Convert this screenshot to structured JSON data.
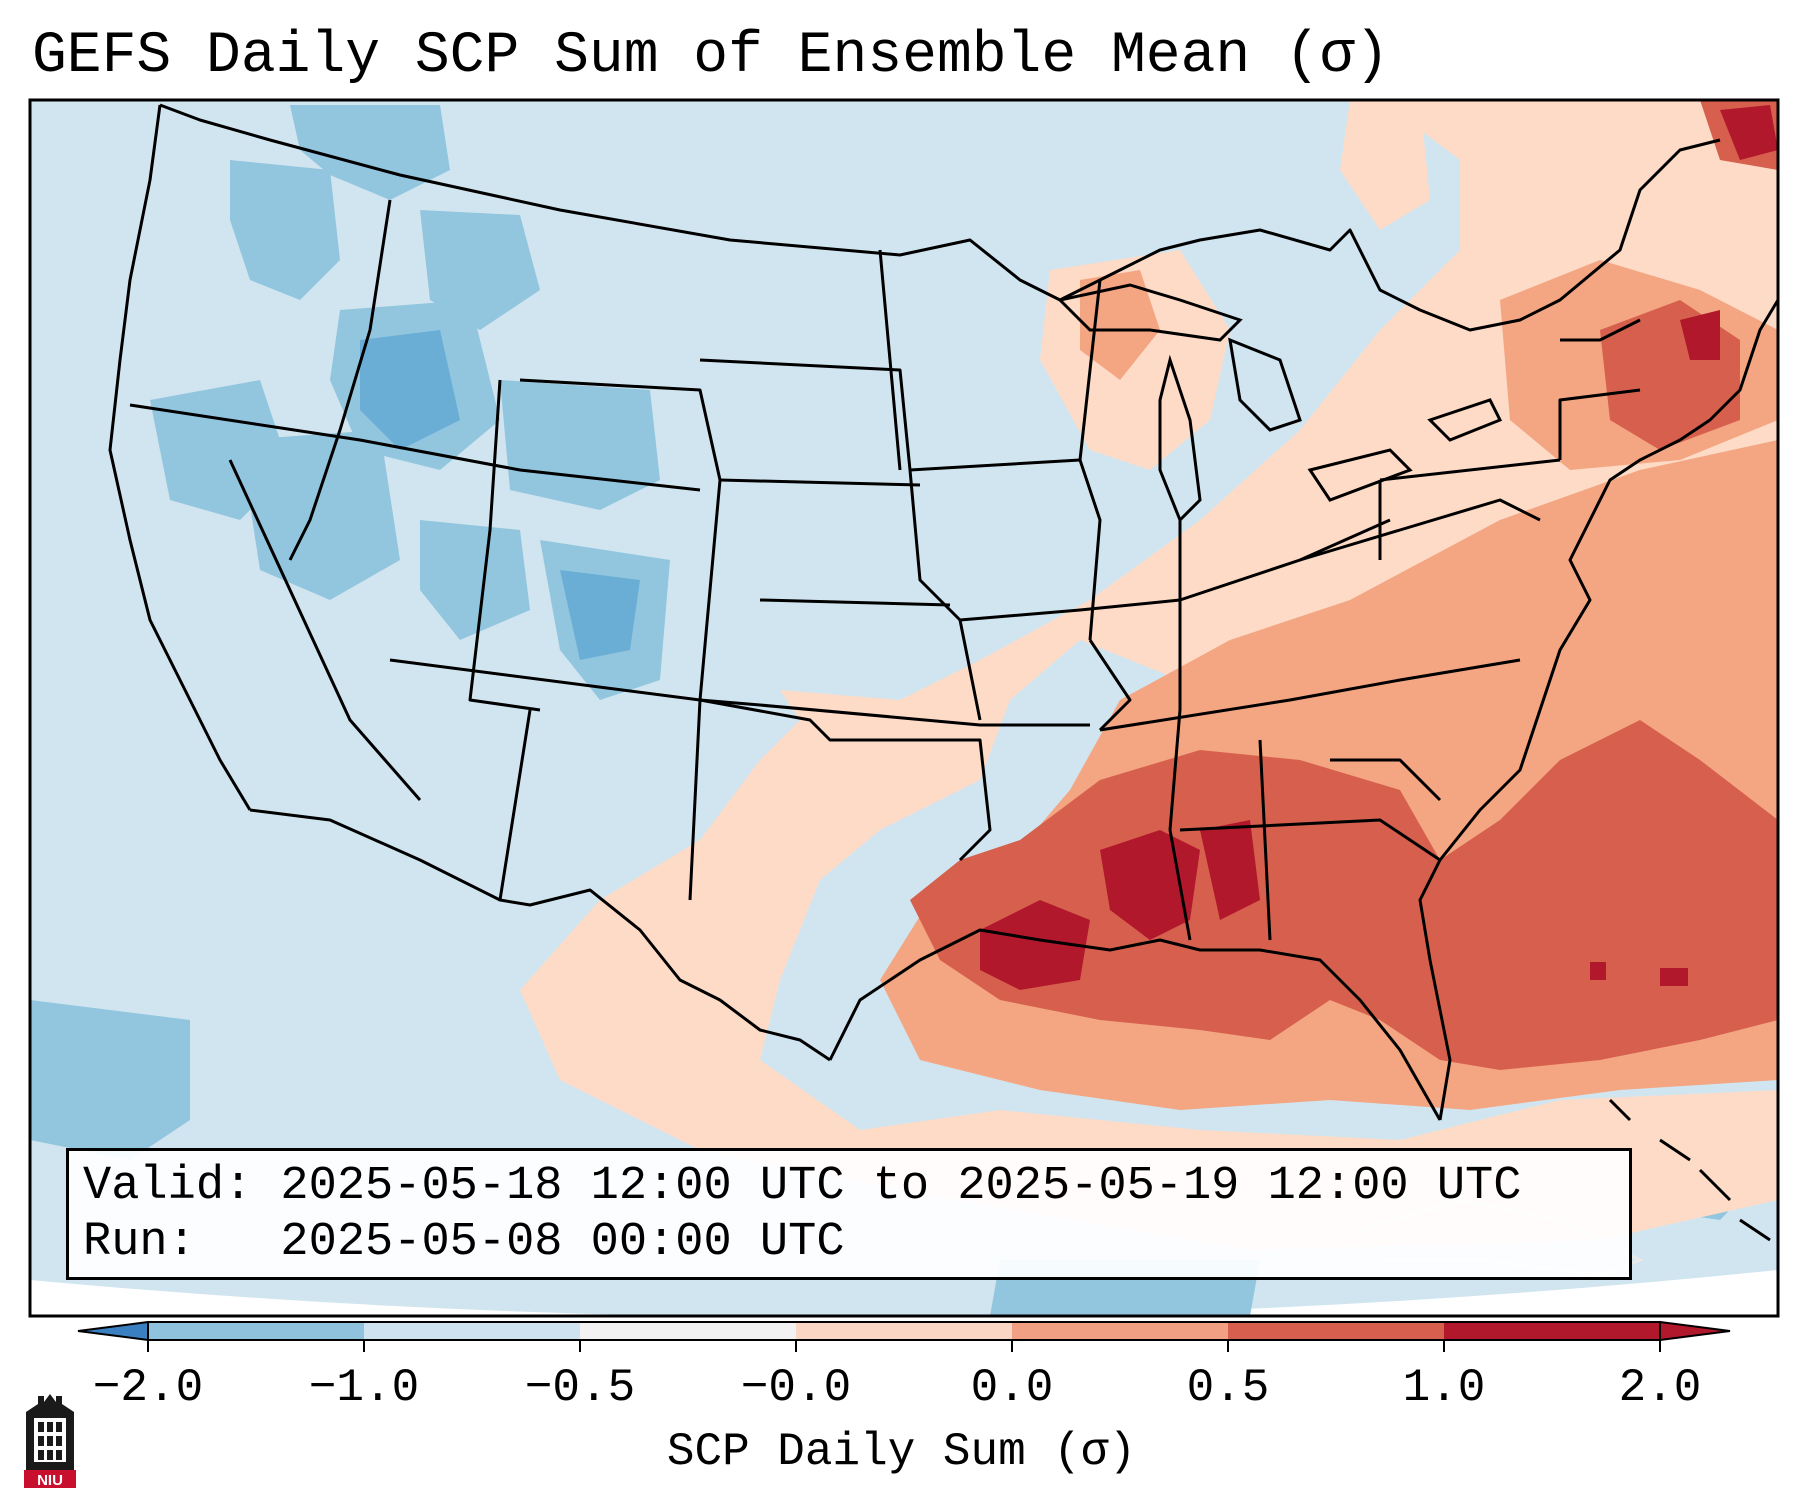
{
  "title": "GEFS Daily SCP Sum of Ensemble Mean (σ)",
  "info": {
    "valid_line": "Valid: 2025-05-18 12:00 UTC to 2025-05-19 12:00 UTC",
    "run_line": "Run:   2025-05-08 00:00 UTC"
  },
  "colorbar": {
    "label": "SCP Daily Sum (σ)",
    "ticks": [
      "−2.0",
      "−1.0",
      "−0.5",
      "−0.0",
      "0.0",
      "0.5",
      "1.0",
      "2.0"
    ],
    "bin_colors": [
      "#3a7fbf",
      "#8ec2dd",
      "#cfe2ef",
      "#f2f2f2",
      "#fbd6c4",
      "#f2a083",
      "#d6604d",
      "#b2182b"
    ],
    "extend": "both"
  },
  "map": {
    "region": "CONUS",
    "colors": {
      "background": "#d1e5f0",
      "blue_light": "#92c5de",
      "blue_mid": "#6aaed6",
      "red_light": "#fddbc7",
      "red_mid": "#f4a582",
      "red_strong": "#d6604d",
      "red_max": "#b2182b"
    }
  },
  "logo": {
    "text": "NIU",
    "icon": "niu-building-logo-icon"
  }
}
